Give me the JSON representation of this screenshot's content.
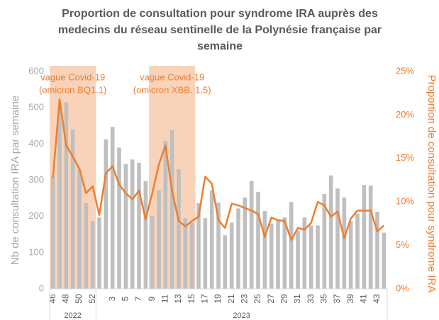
{
  "chart_data": {
    "type": "combo",
    "title_lines": [
      "Proportion de consultation pour syndrome IRA auprès des",
      "medecins du réseau sentinelle de la Polynésie française par",
      "semaine"
    ],
    "y_label": "Nb de consultation IRA par semaine",
    "y2_label": "Proportion de consultation pour syndrome IRA",
    "categories": [
      "46",
      null,
      "48",
      null,
      "50",
      null,
      "52",
      null,
      null,
      "3",
      null,
      "5",
      null,
      "7",
      null,
      "9",
      null,
      "11",
      null,
      "13",
      null,
      "15",
      null,
      "17",
      null,
      "19",
      null,
      "21",
      null,
      "23",
      null,
      "25",
      null,
      "27",
      null,
      "29",
      null,
      "31",
      null,
      "33",
      null,
      "35",
      null,
      "37",
      null,
      "39",
      null,
      "41",
      null,
      "43",
      null
    ],
    "x_groups": [
      {
        "label": "2022",
        "count": 7
      },
      {
        "label": "2023",
        "count": 44
      }
    ],
    "ylim": [
      0,
      600
    ],
    "yticks": [
      0,
      100,
      200,
      300,
      400,
      500,
      600
    ],
    "y2lim": [
      0,
      25
    ],
    "y2ticks": [
      {
        "value": 0,
        "label": "0%"
      },
      {
        "value": 5,
        "label": "5%"
      },
      {
        "value": 10,
        "label": "10%"
      },
      {
        "value": 15,
        "label": "15%"
      },
      {
        "value": 20,
        "label": "20%"
      },
      {
        "value": 25,
        "label": "25%"
      }
    ],
    "shaded": [
      {
        "lines": [
          "vague Covid-19",
          "(omicron BQ1.1)"
        ],
        "start": 0,
        "end": 6,
        "color": "#f8cbad"
      },
      {
        "lines": [
          "vague Covid-19",
          "(omicron XBB. 1.5)"
        ],
        "start": 15,
        "end": 21,
        "color": "#f8cbad"
      }
    ],
    "series": [
      {
        "type": "bar",
        "color": "#bfbfbf",
        "values": [
          310,
          500,
          515,
          440,
          330,
          237,
          187,
          197,
          413,
          447,
          390,
          345,
          357,
          348,
          297,
          202,
          272,
          408,
          438,
          330,
          195,
          183,
          237,
          195,
          272,
          238,
          148,
          183,
          222,
          252,
          298,
          268,
          215,
          180,
          190,
          197,
          240,
          160,
          197,
          175,
          175,
          262,
          313,
          277,
          252,
          187,
          208,
          287,
          285,
          213,
          155
        ]
      },
      {
        "type": "line",
        "axis": "y2",
        "color": "#ed7d31",
        "values": [
          12.8,
          21.8,
          16.5,
          15.2,
          13.8,
          11.0,
          11.8,
          8.5,
          13.3,
          14.1,
          12.0,
          11.0,
          10.3,
          11.3,
          8.0,
          11.0,
          14.3,
          16.5,
          11.2,
          7.8,
          7.2,
          7.8,
          8.3,
          12.9,
          12.1,
          7.9,
          7.0,
          9.8,
          9.6,
          9.3,
          9.0,
          8.6,
          6.0,
          8.2,
          7.9,
          7.8,
          5.6,
          7.0,
          6.8,
          7.6,
          10.0,
          9.6,
          8.3,
          8.9,
          5.8,
          8.1,
          9.0,
          9.0,
          9.0,
          6.6,
          7.3
        ]
      }
    ]
  }
}
